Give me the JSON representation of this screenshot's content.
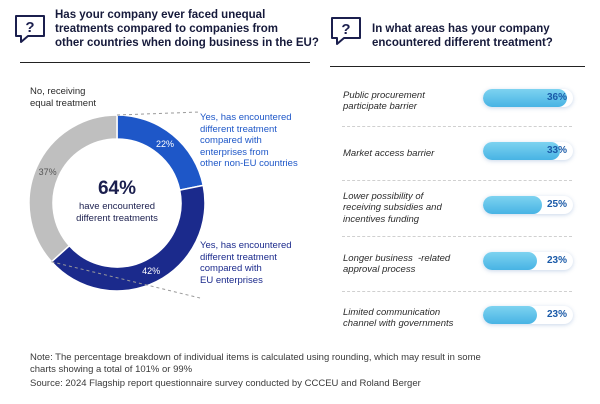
{
  "left_panel": {
    "title_lines": [
      "Has your company ever faced unequal",
      "treatments compared to companies from",
      "other countries when doing business in the EU?"
    ],
    "center_value": "64%",
    "center_text_lines": [
      "have encountered",
      "different treatments"
    ]
  },
  "right_panel": {
    "title_lines": [
      "In what areas has your company",
      "encountered different treatment?"
    ]
  },
  "colors": {
    "navy": "#1b2a8c",
    "mid_blue": "#1e57c8",
    "gray": "#bfbfbf",
    "bar_fill": "#5cc0ea",
    "title": "#161a3b"
  },
  "chart_data": [
    {
      "type": "pie",
      "subtype": "donut",
      "title": "Has your company ever faced unequal treatments compared to companies from other countries when doing business in the EU?",
      "slices": [
        {
          "key": "eu",
          "value": 42,
          "value_label": "42%",
          "label_lines": [
            "Yes, has encountered",
            "different treatment",
            "compared with",
            "EU enterprises"
          ]
        },
        {
          "key": "noneu",
          "value": 22,
          "value_label": "22%",
          "label_lines": [
            "Yes, has encountered",
            "different treatment",
            "compared with",
            "enterprises from",
            "other non-EU countries"
          ]
        },
        {
          "key": "no",
          "value": 37,
          "value_label": "37%",
          "label_lines": [
            "No, receiving",
            "equal treatment"
          ]
        }
      ]
    },
    {
      "type": "bar",
      "orientation": "horizontal",
      "title": "In what areas has your company encountered different treatment?",
      "xlim": [
        0,
        100
      ],
      "items": [
        {
          "label_lines": [
            "Public procurement",
            "participate barrier"
          ],
          "value": 36,
          "value_label": "36%"
        },
        {
          "label_lines": [
            "Market access barrier"
          ],
          "value": 33,
          "value_label": "33%"
        },
        {
          "label_lines": [
            "Lower possibility of",
            "receiving subsidies and",
            "incentives funding"
          ],
          "value": 25,
          "value_label": "25%"
        },
        {
          "label_lines": [
            "Longer business  -related",
            "approval process"
          ],
          "value": 23,
          "value_label": "23%"
        },
        {
          "label_lines": [
            "Limited communication",
            "channel with governments"
          ],
          "value": 23,
          "value_label": "23%"
        }
      ]
    }
  ],
  "footer": {
    "note_lines": [
      "Note: The percentage breakdown of individual items is calculated using rounding, which may result in some",
      "charts showing a total of 101% or 99%"
    ],
    "source": "Source: 2024 Flagship report questionnaire survey conducted by CCCEU and Roland Berger"
  }
}
